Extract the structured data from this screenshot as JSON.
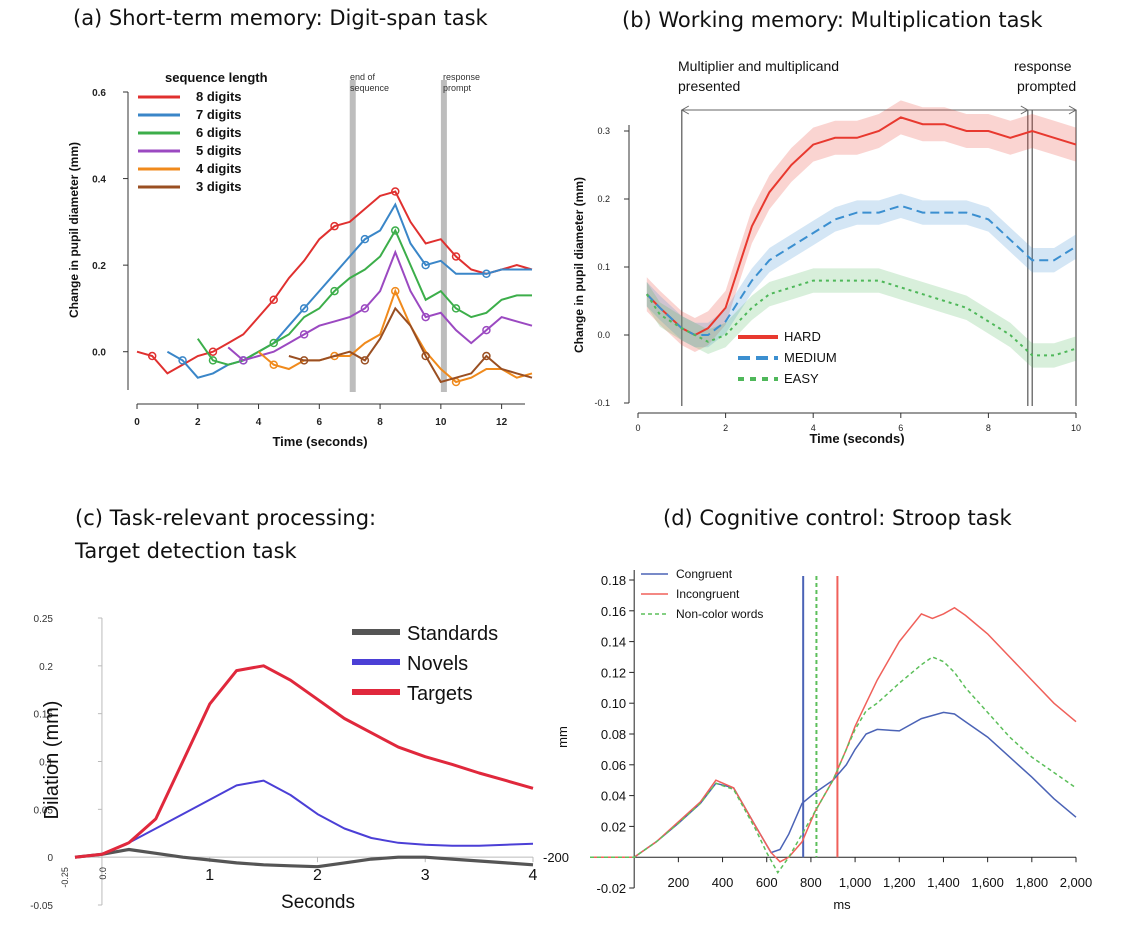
{
  "colors": {
    "red": "#e0302f",
    "blue": "#3a86c8",
    "green": "#3cae4a",
    "purple": "#9b49c1",
    "orange": "#f08a1c",
    "brown": "#9a4f22",
    "b_red": "#e8392f",
    "b_blue": "#3b8fd0",
    "b_green": "#4fb85a",
    "c_gray": "#555555",
    "c_novel": "#4b3fd6",
    "c_target": "#e0283c",
    "d_blue": "#4b63b6",
    "d_red": "#f0605a",
    "d_green": "#5cbf5a"
  },
  "panels": {
    "a": {
      "title": "(a) Short-term memory: Digit-span task"
    },
    "b": {
      "title": "(b) Working memory: Multiplication task"
    },
    "c": {
      "title1": "(c) Task-relevant processing:",
      "title2": "Target detection task"
    },
    "d": {
      "title": "(d) Cognitive control: Stroop task"
    }
  },
  "chart_data": [
    {
      "id": "a",
      "type": "line",
      "xlabel": "Time (seconds)",
      "ylabel": "Change in pupil diameter (mm)",
      "xlim": [
        0,
        13
      ],
      "ylim": [
        -0.1,
        0.6
      ],
      "xticks": [
        "0",
        "2",
        "4",
        "6",
        "8",
        "10",
        "12"
      ],
      "yticks": [
        "0.0",
        "0.2",
        "0.4",
        "0.6"
      ],
      "legend_title": "sequence length",
      "annotations": [
        "end of",
        "sequence",
        "response",
        "prompt"
      ],
      "vbars": [
        7.1,
        10.1
      ],
      "series": [
        {
          "name": "8 digits",
          "x": [
            0,
            0.5,
            1,
            1.5,
            2,
            2.5,
            3,
            3.5,
            4,
            4.5,
            5,
            5.5,
            6,
            6.5,
            7,
            7.5,
            8,
            8.5,
            9,
            9.5,
            10,
            10.5,
            11,
            11.5,
            12,
            12.5,
            13
          ],
          "y": [
            0,
            -0.01,
            -0.05,
            -0.03,
            -0.01,
            0,
            0.02,
            0.04,
            0.08,
            0.12,
            0.17,
            0.21,
            0.26,
            0.29,
            0.3,
            0.33,
            0.36,
            0.37,
            0.3,
            0.25,
            0.26,
            0.22,
            0.19,
            0.18,
            0.19,
            0.2,
            0.19
          ]
        },
        {
          "name": "7 digits",
          "x": [
            1,
            1.5,
            2,
            2.5,
            3,
            3.5,
            4,
            4.5,
            5,
            5.5,
            6,
            6.5,
            7,
            7.5,
            8,
            8.5,
            9,
            9.5,
            10,
            10.5,
            11,
            11.5,
            12,
            12.5,
            13
          ],
          "y": [
            0,
            -0.02,
            -0.06,
            -0.05,
            -0.03,
            -0.02,
            0.0,
            0.02,
            0.06,
            0.1,
            0.14,
            0.18,
            0.22,
            0.26,
            0.28,
            0.34,
            0.25,
            0.2,
            0.21,
            0.18,
            0.18,
            0.18,
            0.19,
            0.19,
            0.19
          ]
        },
        {
          "name": "6 digits",
          "x": [
            2,
            2.5,
            3,
            3.5,
            4,
            4.5,
            5,
            5.5,
            6,
            6.5,
            7,
            7.5,
            8,
            8.5,
            9,
            9.5,
            10,
            10.5,
            11,
            11.5,
            12,
            12.5,
            13
          ],
          "y": [
            0.03,
            -0.02,
            -0.03,
            -0.02,
            0,
            0.02,
            0.04,
            0.08,
            0.1,
            0.14,
            0.17,
            0.19,
            0.22,
            0.28,
            0.2,
            0.12,
            0.14,
            0.1,
            0.08,
            0.09,
            0.12,
            0.13,
            0.13
          ]
        },
        {
          "name": "5 digits",
          "x": [
            3,
            3.5,
            4,
            4.5,
            5,
            5.5,
            6,
            6.5,
            7,
            7.5,
            8,
            8.5,
            9,
            9.5,
            10,
            10.5,
            11,
            11.5,
            12,
            12.5,
            13
          ],
          "y": [
            0.01,
            -0.02,
            -0.01,
            0.0,
            0.02,
            0.04,
            0.06,
            0.07,
            0.08,
            0.1,
            0.14,
            0.23,
            0.14,
            0.08,
            0.09,
            0.05,
            0.02,
            0.05,
            0.08,
            0.07,
            0.06
          ]
        },
        {
          "name": "4 digits",
          "x": [
            4,
            4.5,
            5,
            5.5,
            6,
            6.5,
            7,
            7.5,
            8,
            8.5,
            9,
            9.5,
            10,
            10.5,
            11,
            11.5,
            12,
            12.5,
            13
          ],
          "y": [
            0.0,
            -0.03,
            -0.04,
            -0.02,
            -0.02,
            -0.01,
            -0.01,
            0.02,
            0.04,
            0.14,
            0.06,
            0.0,
            -0.04,
            -0.07,
            -0.06,
            -0.04,
            -0.04,
            -0.06,
            -0.05
          ]
        },
        {
          "name": "3 digits",
          "x": [
            5,
            5.5,
            6,
            6.5,
            7,
            7.5,
            8,
            8.5,
            9,
            9.5,
            10,
            10.5,
            11,
            11.5,
            12,
            12.5,
            13
          ],
          "y": [
            -0.01,
            -0.02,
            -0.02,
            -0.01,
            0,
            -0.02,
            0.03,
            0.1,
            0.06,
            -0.01,
            -0.07,
            -0.06,
            -0.05,
            -0.01,
            -0.04,
            -0.05,
            -0.06
          ]
        }
      ]
    },
    {
      "id": "b",
      "type": "line",
      "xlabel": "Time (seconds)",
      "ylabel": "Change in pupil diameter (mm)",
      "xlim": [
        0,
        10
      ],
      "ylim": [
        -0.1,
        0.35
      ],
      "xticks": [
        "0",
        "2",
        "4",
        "6",
        "8",
        "10"
      ],
      "yticks": [
        "-0.1",
        "0.0",
        "0.1",
        "0.2",
        "0.3"
      ],
      "annotations": [
        "Multiplier and multiplicand",
        "presented",
        "response",
        "prompted"
      ],
      "vlines": [
        1.0,
        8.9,
        9.0,
        10.0
      ],
      "series": [
        {
          "name": "HARD",
          "x": [
            0.2,
            0.5,
            1,
            1.3,
            1.6,
            2,
            2.3,
            2.6,
            3,
            3.5,
            4,
            4.5,
            5,
            5.5,
            6,
            6.5,
            7,
            7.5,
            8,
            8.5,
            9,
            9.5,
            10
          ],
          "y": [
            0.06,
            0.04,
            0.01,
            0.0,
            0.01,
            0.04,
            0.1,
            0.16,
            0.21,
            0.25,
            0.28,
            0.29,
            0.29,
            0.3,
            0.32,
            0.31,
            0.31,
            0.3,
            0.3,
            0.29,
            0.3,
            0.29,
            0.28
          ]
        },
        {
          "name": "MEDIUM",
          "x": [
            0.2,
            0.5,
            1,
            1.3,
            1.6,
            2,
            2.3,
            2.6,
            3,
            3.5,
            4,
            4.5,
            5,
            5.5,
            6,
            6.5,
            7,
            7.5,
            8,
            8.5,
            9,
            9.5,
            10
          ],
          "y": [
            0.06,
            0.04,
            0.01,
            0.0,
            0.0,
            0.02,
            0.05,
            0.08,
            0.11,
            0.13,
            0.15,
            0.17,
            0.18,
            0.18,
            0.19,
            0.18,
            0.18,
            0.18,
            0.17,
            0.14,
            0.11,
            0.11,
            0.13
          ]
        },
        {
          "name": "EASY",
          "x": [
            0.2,
            0.5,
            1,
            1.3,
            1.6,
            2,
            2.3,
            2.6,
            3,
            3.5,
            4,
            4.5,
            5,
            5.5,
            6,
            6.5,
            7,
            7.5,
            8,
            8.5,
            9,
            9.5,
            10
          ],
          "y": [
            0.06,
            0.03,
            0.01,
            0.0,
            -0.01,
            0.0,
            0.02,
            0.04,
            0.06,
            0.07,
            0.08,
            0.08,
            0.08,
            0.08,
            0.07,
            0.06,
            0.05,
            0.04,
            0.02,
            0.0,
            -0.03,
            -0.03,
            -0.02
          ]
        }
      ]
    },
    {
      "id": "c",
      "type": "line",
      "xlabel": "Seconds",
      "ylabel": "Dilation (mm)",
      "xlim": [
        -0.25,
        4
      ],
      "ylim": [
        -0.05,
        0.25
      ],
      "xticks": [
        "1",
        "2",
        "3",
        "4"
      ],
      "xticks_rot": [
        "-0.25",
        "0.0"
      ],
      "yticks": [
        "-0.05",
        "0",
        "0.05",
        "0.1",
        "0.15",
        "0.2",
        "0.25"
      ],
      "series": [
        {
          "name": "Standards",
          "x": [
            -0.25,
            0,
            0.25,
            0.5,
            0.75,
            1,
            1.25,
            1.5,
            1.75,
            2,
            2.25,
            2.5,
            2.75,
            3,
            3.25,
            3.5,
            3.75,
            4
          ],
          "y": [
            0,
            0.003,
            0.008,
            0.004,
            0,
            -0.003,
            -0.006,
            -0.008,
            -0.009,
            -0.01,
            -0.006,
            -0.002,
            0.0,
            0.0,
            -0.002,
            -0.004,
            -0.006,
            -0.008
          ]
        },
        {
          "name": "Novels",
          "x": [
            -0.25,
            0,
            0.25,
            0.5,
            0.75,
            1,
            1.25,
            1.5,
            1.75,
            2,
            2.25,
            2.5,
            2.75,
            3,
            3.25,
            3.5,
            3.75,
            4
          ],
          "y": [
            0,
            0.003,
            0.015,
            0.03,
            0.045,
            0.06,
            0.075,
            0.08,
            0.065,
            0.045,
            0.03,
            0.02,
            0.015,
            0.013,
            0.012,
            0.012,
            0.013,
            0.014
          ]
        },
        {
          "name": "Targets",
          "x": [
            -0.25,
            0,
            0.25,
            0.5,
            0.75,
            1,
            1.25,
            1.5,
            1.75,
            2,
            2.25,
            2.5,
            2.75,
            3,
            3.25,
            3.5,
            3.75,
            4
          ],
          "y": [
            0,
            0.003,
            0.015,
            0.04,
            0.1,
            0.16,
            0.195,
            0.2,
            0.185,
            0.165,
            0.145,
            0.13,
            0.115,
            0.105,
            0.097,
            0.088,
            0.08,
            0.072
          ]
        }
      ]
    },
    {
      "id": "d",
      "type": "line",
      "xlabel": "ms",
      "ylabel": "mm",
      "xlim": [
        -200,
        2000
      ],
      "ylim": [
        -0.02,
        0.18
      ],
      "xticks": [
        "-200",
        "200",
        "400",
        "600",
        "800",
        "1,000",
        "1,200",
        "1,400",
        "1,600",
        "1,800",
        "2,000"
      ],
      "yticks": [
        "-0.02",
        "0.02",
        "0.04",
        "0.06",
        "0.08",
        "0.10",
        "0.12",
        "0.14",
        "0.16",
        "0.18"
      ],
      "vlines": [
        {
          "x": 765,
          "series": "Congruent"
        },
        {
          "x": 825,
          "series": "Non-color words"
        },
        {
          "x": 920,
          "series": "Incongruent"
        }
      ],
      "series": [
        {
          "name": "Congruent",
          "x": [
            -200,
            0,
            100,
            200,
            300,
            370,
            450,
            550,
            620,
            660,
            700,
            760,
            820,
            900,
            960,
            1000,
            1050,
            1100,
            1200,
            1300,
            1400,
            1450,
            1500,
            1600,
            1700,
            1800,
            1900,
            2000
          ],
          "y": [
            0,
            0,
            0.01,
            0.022,
            0.035,
            0.048,
            0.045,
            0.02,
            0.003,
            0.005,
            0.015,
            0.035,
            0.042,
            0.05,
            0.06,
            0.07,
            0.08,
            0.083,
            0.082,
            0.09,
            0.094,
            0.093,
            0.088,
            0.078,
            0.065,
            0.052,
            0.038,
            0.026
          ]
        },
        {
          "name": "Incongruent",
          "x": [
            -200,
            0,
            100,
            200,
            300,
            370,
            450,
            550,
            620,
            660,
            700,
            760,
            820,
            900,
            960,
            1000,
            1050,
            1100,
            1200,
            1300,
            1350,
            1400,
            1450,
            1500,
            1600,
            1700,
            1800,
            1900,
            2000
          ],
          "y": [
            0,
            0,
            0.01,
            0.023,
            0.036,
            0.05,
            0.045,
            0.02,
            0.003,
            -0.003,
            0.0,
            0.01,
            0.03,
            0.05,
            0.07,
            0.085,
            0.1,
            0.115,
            0.14,
            0.158,
            0.155,
            0.158,
            0.162,
            0.157,
            0.145,
            0.13,
            0.115,
            0.1,
            0.088
          ]
        },
        {
          "name": "Non-color words",
          "x": [
            -200,
            0,
            100,
            200,
            300,
            370,
            450,
            550,
            600,
            650,
            700,
            760,
            820,
            900,
            960,
            1000,
            1050,
            1100,
            1200,
            1300,
            1350,
            1400,
            1450,
            1500,
            1600,
            1700,
            1800,
            1900,
            2000
          ],
          "y": [
            0,
            0,
            0.01,
            0.022,
            0.035,
            0.048,
            0.044,
            0.018,
            0.003,
            -0.01,
            0.0,
            0.015,
            0.03,
            0.05,
            0.07,
            0.083,
            0.095,
            0.1,
            0.113,
            0.125,
            0.13,
            0.127,
            0.12,
            0.11,
            0.094,
            0.078,
            0.065,
            0.055,
            0.045
          ]
        }
      ]
    }
  ]
}
